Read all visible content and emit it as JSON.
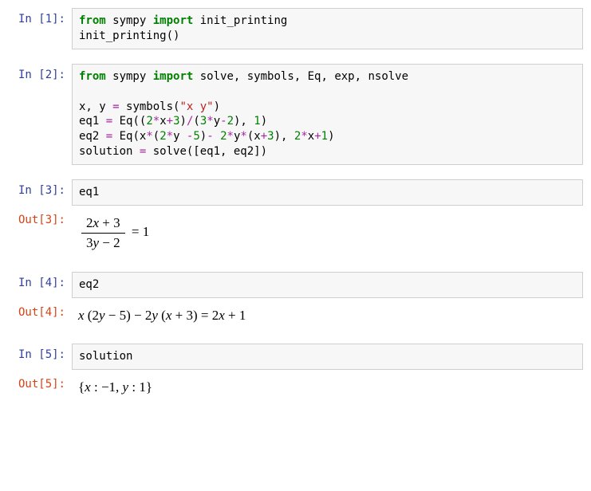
{
  "colors": {
    "prompt_in": "#303f9f",
    "prompt_out": "#d84315",
    "keyword": "#008000",
    "operator": "#a626a4",
    "number": "#008000",
    "string": "#ba2121",
    "cell_bg": "#f7f7f7",
    "cell_border": "#cfcfcf",
    "page_bg": "#ffffff",
    "text": "#000000"
  },
  "fonts": {
    "mono": "DejaVu Sans Mono, Menlo, Consolas, monospace",
    "math": "STIXGeneral, Cambria Math, Times New Roman, serif",
    "code_size_pt": 10.5,
    "math_size_pt": 12.5
  },
  "cells": [
    {
      "kind": "in",
      "prompt": "In [1]:",
      "code": {
        "type": "code",
        "tokens": [
          [
            "kw",
            "from"
          ],
          [
            "txt",
            " sympy "
          ],
          [
            "kw",
            "import"
          ],
          [
            "txt",
            " init_printing\ninit_printing()"
          ]
        ]
      }
    },
    {
      "kind": "in",
      "prompt": "In [2]:",
      "code": {
        "type": "code",
        "tokens": [
          [
            "kw",
            "from"
          ],
          [
            "txt",
            " sympy "
          ],
          [
            "kw",
            "import"
          ],
          [
            "txt",
            " solve, symbols, Eq, exp, nsolve\n\nx, y "
          ],
          [
            "op",
            "="
          ],
          [
            "txt",
            " symbols("
          ],
          [
            "str",
            "\"x y\""
          ],
          [
            "txt",
            ")\neq1 "
          ],
          [
            "op",
            "="
          ],
          [
            "txt",
            " Eq(("
          ],
          [
            "num",
            "2"
          ],
          [
            "op",
            "*"
          ],
          [
            "txt",
            "x"
          ],
          [
            "op",
            "+"
          ],
          [
            "num",
            "3"
          ],
          [
            "txt",
            ")"
          ],
          [
            "op",
            "/"
          ],
          [
            "txt",
            "("
          ],
          [
            "num",
            "3"
          ],
          [
            "op",
            "*"
          ],
          [
            "txt",
            "y"
          ],
          [
            "op",
            "-"
          ],
          [
            "num",
            "2"
          ],
          [
            "txt",
            "), "
          ],
          [
            "num",
            "1"
          ],
          [
            "txt",
            ")\neq2 "
          ],
          [
            "op",
            "="
          ],
          [
            "txt",
            " Eq(x"
          ],
          [
            "op",
            "*"
          ],
          [
            "txt",
            "("
          ],
          [
            "num",
            "2"
          ],
          [
            "op",
            "*"
          ],
          [
            "txt",
            "y "
          ],
          [
            "op",
            "-"
          ],
          [
            "num",
            "5"
          ],
          [
            "txt",
            ")"
          ],
          [
            "op",
            "-"
          ],
          [
            "txt",
            " "
          ],
          [
            "num",
            "2"
          ],
          [
            "op",
            "*"
          ],
          [
            "txt",
            "y"
          ],
          [
            "op",
            "*"
          ],
          [
            "txt",
            "(x"
          ],
          [
            "op",
            "+"
          ],
          [
            "num",
            "3"
          ],
          [
            "txt",
            "), "
          ],
          [
            "num",
            "2"
          ],
          [
            "op",
            "*"
          ],
          [
            "txt",
            "x"
          ],
          [
            "op",
            "+"
          ],
          [
            "num",
            "1"
          ],
          [
            "txt",
            ")\nsolution "
          ],
          [
            "op",
            "="
          ],
          [
            "txt",
            " solve([eq1, eq2])"
          ]
        ]
      }
    },
    {
      "kind": "in",
      "prompt": "In [3]:",
      "code": {
        "type": "code",
        "tokens": [
          [
            "txt",
            "eq1"
          ]
        ]
      }
    },
    {
      "kind": "out",
      "prompt": "Out[3]:",
      "output": {
        "type": "math_fraction_eq",
        "numerator": "2x + 3",
        "denominator": "3y − 2",
        "rhs": "1"
      }
    },
    {
      "kind": "in",
      "prompt": "In [4]:",
      "code": {
        "type": "code",
        "tokens": [
          [
            "txt",
            "eq2"
          ]
        ]
      }
    },
    {
      "kind": "out",
      "prompt": "Out[4]:",
      "output": {
        "type": "math_plain",
        "text": "x (2y − 5) − 2y (x + 3) = 2x + 1"
      }
    },
    {
      "kind": "in",
      "prompt": "In [5]:",
      "code": {
        "type": "code",
        "tokens": [
          [
            "txt",
            "solution"
          ]
        ]
      }
    },
    {
      "kind": "out",
      "prompt": "Out[5]:",
      "output": {
        "type": "math_plain",
        "text": "{x : −1,  y : 1}"
      }
    }
  ]
}
